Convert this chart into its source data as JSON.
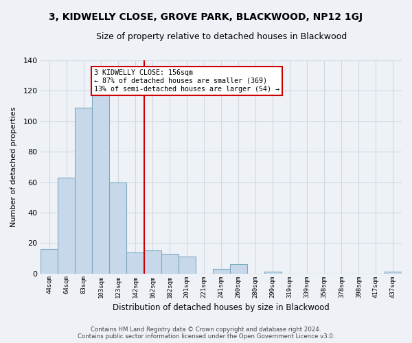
{
  "title": "3, KIDWELLY CLOSE, GROVE PARK, BLACKWOOD, NP12 1GJ",
  "subtitle": "Size of property relative to detached houses in Blackwood",
  "xlabel": "Distribution of detached houses by size in Blackwood",
  "ylabel": "Number of detached properties",
  "bar_labels": [
    "44sqm",
    "64sqm",
    "83sqm",
    "103sqm",
    "123sqm",
    "142sqm",
    "162sqm",
    "182sqm",
    "201sqm",
    "221sqm",
    "241sqm",
    "260sqm",
    "280sqm",
    "299sqm",
    "319sqm",
    "339sqm",
    "358sqm",
    "378sqm",
    "398sqm",
    "417sqm",
    "437sqm"
  ],
  "bar_values": [
    16,
    63,
    109,
    117,
    60,
    14,
    15,
    13,
    11,
    0,
    3,
    6,
    0,
    1,
    0,
    0,
    0,
    0,
    0,
    0,
    1
  ],
  "bar_color": "#c8d8eb",
  "bar_edge_color": "#7aaabf",
  "vline_x_idx": 6,
  "vline_color": "#cc0000",
  "annotation_title": "3 KIDWELLY CLOSE: 156sqm",
  "annotation_line1": "← 87% of detached houses are smaller (369)",
  "annotation_line2": "13% of semi-detached houses are larger (54) →",
  "annotation_box_color": "#ffffff",
  "annotation_box_edge": "#cc0000",
  "ylim": [
    0,
    140
  ],
  "yticks": [
    0,
    20,
    40,
    60,
    80,
    100,
    120,
    140
  ],
  "footer1": "Contains HM Land Registry data © Crown copyright and database right 2024.",
  "footer2": "Contains public sector information licensed under the Open Government Licence v3.0.",
  "bg_color": "#eef2f7",
  "grid_color": "#d0d8e4",
  "title_fontsize": 10,
  "subtitle_fontsize": 9
}
